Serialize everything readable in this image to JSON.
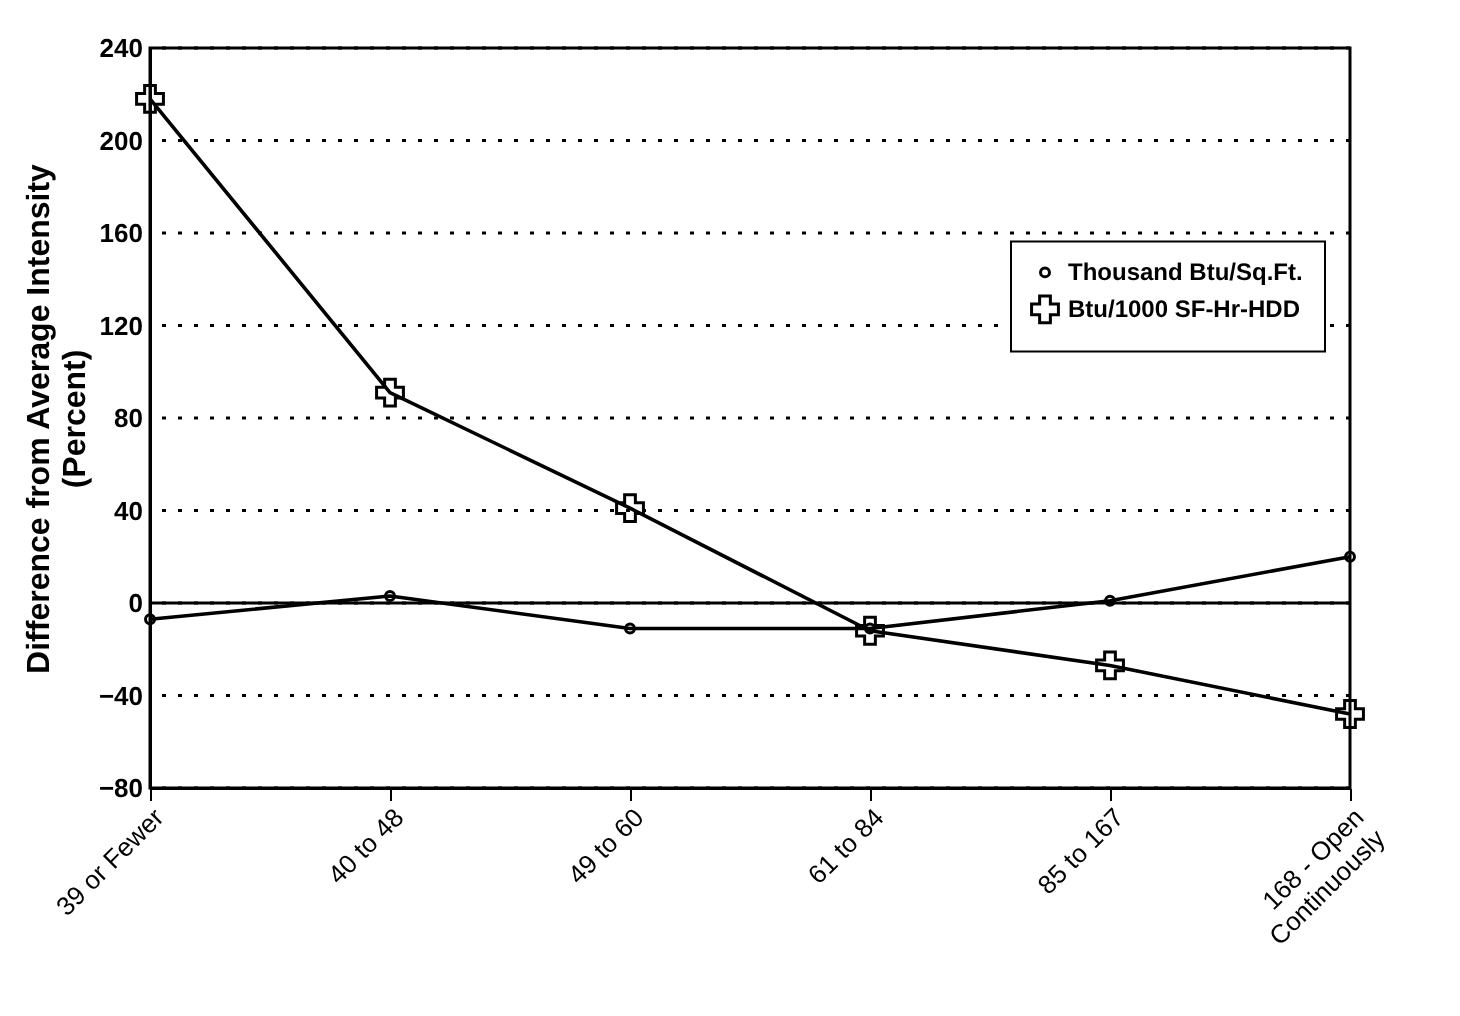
{
  "chart_data": {
    "type": "line",
    "ylabel": "Difference from Average Intensity\n(Percent)",
    "categories": [
      "39 or Fewer",
      "40 to 48",
      "49 to 60",
      "61 to 84",
      "85 to 167",
      "168 - Open Continuously"
    ],
    "series": [
      {
        "name": "Thousand Btu/Sq.Ft.",
        "color": "#000000",
        "marker": "circle",
        "values": [
          -7,
          3,
          -11,
          -11,
          1,
          20
        ]
      },
      {
        "name": "Btu/1000 SF-Hr-HDD",
        "color": "#000000",
        "marker": "cross",
        "values": [
          218,
          91,
          41,
          -12,
          -27,
          -48
        ]
      }
    ],
    "ylim": [
      -80,
      240
    ],
    "yticks": [
      -80,
      -40,
      0,
      40,
      80,
      120,
      160,
      200,
      240
    ],
    "grid": "y",
    "legend": "right",
    "ref_lines": [
      {
        "axis": "y",
        "value": 0
      }
    ]
  }
}
